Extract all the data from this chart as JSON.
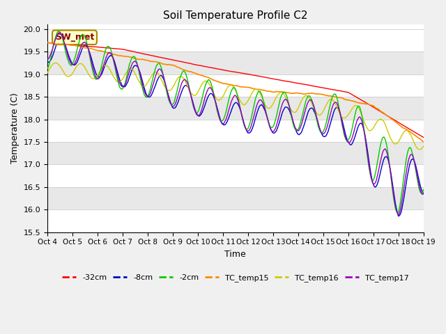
{
  "title": "Soil Temperature Profile C2",
  "xlabel": "Time",
  "ylabel": "Temperature (C)",
  "ylim": [
    15.5,
    20.1
  ],
  "xlim_days": [
    0,
    15
  ],
  "x_tick_labels": [
    "Oct 4",
    "Oct 5",
    "Oct 6",
    "Oct 7",
    "Oct 8",
    "Oct 9",
    "Oct 10",
    "Oct 11",
    "Oct 12",
    "Oct 13",
    "Oct 14",
    "Oct 15",
    "Oct 16",
    "Oct 17",
    "Oct 18",
    "Oct 19"
  ],
  "series_colors": {
    "depth_32cm": "#ff0000",
    "depth_8cm": "#0000cc",
    "depth_2cm": "#00cc00",
    "TC_temp15": "#ff8800",
    "TC_temp16": "#cccc00",
    "TC_temp17": "#9900bb"
  },
  "legend_labels": [
    "-32cm",
    "-8cm",
    "-2cm",
    "TC_temp15",
    "TC_temp16",
    "TC_temp17"
  ],
  "background_color": "#f0f0f0",
  "plot_bg_color": "#ffffff",
  "annotation_text": "SW_met",
  "annotation_color": "#880000",
  "annotation_bg": "#ffffcc",
  "annotation_border": "#aa8800",
  "grid_color": "#cccccc",
  "band_color_light": "#ffffff",
  "band_color_dark": "#e8e8e8",
  "title_fontsize": 11
}
